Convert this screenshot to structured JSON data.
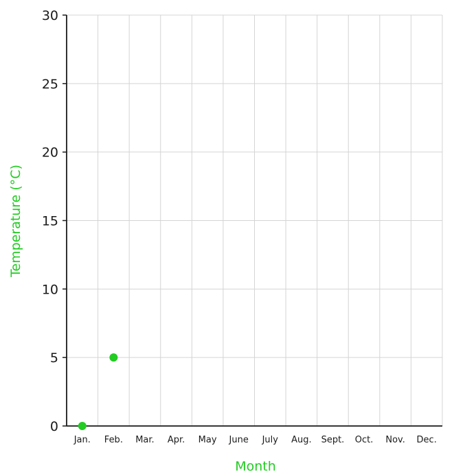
{
  "chart_data": {
    "type": "scatter",
    "title": "",
    "xlabel": "Month",
    "ylabel": "Temperature (°C)",
    "categories": [
      "Jan.",
      "Feb.",
      "Mar.",
      "Apr.",
      "May",
      "June",
      "July",
      "Aug.",
      "Sept.",
      "Oct.",
      "Nov.",
      "Dec."
    ],
    "y_ticks": [
      "0",
      "5",
      "10",
      "15",
      "20",
      "25",
      "30"
    ],
    "ylim": [
      0,
      30
    ],
    "grid": true,
    "series": [
      {
        "x": [
          "Jan.",
          "Feb."
        ],
        "values": [
          0,
          5
        ]
      }
    ],
    "colors": {
      "accent": "#22cc22",
      "grid": "#d4d4d4",
      "axis": "#1a1a1a"
    }
  }
}
